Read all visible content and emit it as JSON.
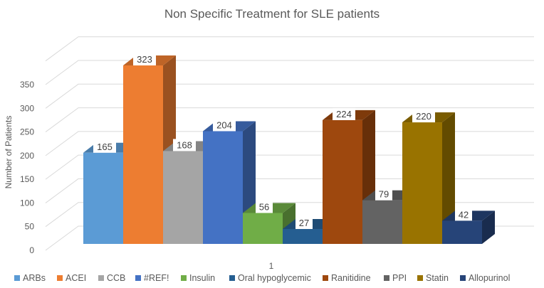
{
  "chart_data": {
    "type": "bar",
    "style": "3d-clustered-column",
    "title": "Non Specific Treatment for SLE  patients",
    "xlabel": "",
    "ylabel": "Number of Patients",
    "categories": [
      "1"
    ],
    "ylim": [
      0,
      400
    ],
    "yticks": [
      0,
      50,
      100,
      150,
      200,
      250,
      300,
      350
    ],
    "grid": true,
    "legend_position": "bottom",
    "series": [
      {
        "name": "ARBs",
        "values": [
          165
        ],
        "color": "#5B9BD5"
      },
      {
        "name": "ACEI",
        "values": [
          323
        ],
        "color": "#ED7D31"
      },
      {
        "name": "CCB",
        "values": [
          168
        ],
        "color": "#A5A5A5"
      },
      {
        "name": "#REF!",
        "values": [
          204
        ],
        "color": "#4472C4"
      },
      {
        "name": "Insulin",
        "values": [
          56
        ],
        "color": "#70AD47"
      },
      {
        "name": "Oral hypoglycemic",
        "values": [
          27
        ],
        "color": "#255E91"
      },
      {
        "name": "Ranitidine",
        "values": [
          224
        ],
        "color": "#9E480E"
      },
      {
        "name": "PPI",
        "values": [
          79
        ],
        "color": "#636363"
      },
      {
        "name": "Statin",
        "values": [
          220
        ],
        "color": "#997300"
      },
      {
        "name": "Allopurinol",
        "values": [
          42
        ],
        "color": "#264478"
      }
    ]
  }
}
